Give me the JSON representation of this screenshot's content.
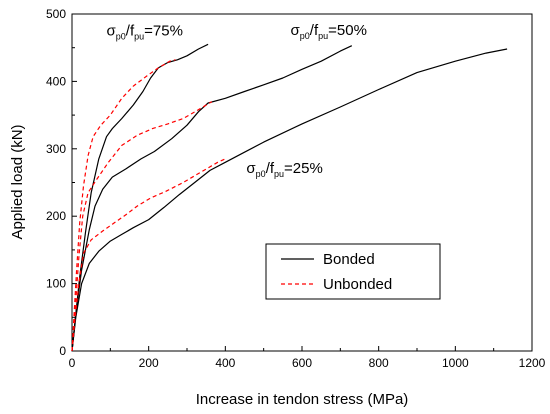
{
  "chart_data": {
    "type": "line",
    "xlabel": "Increase in tendon stress (MPa)",
    "ylabel": "Applied load (kN)",
    "xlim": [
      0,
      1200
    ],
    "ylim": [
      0,
      500
    ],
    "xticks": [
      0,
      200,
      400,
      600,
      800,
      1000,
      1200
    ],
    "yticks": [
      0,
      100,
      200,
      300,
      400,
      500
    ],
    "grid": false,
    "legend": {
      "position": "lower-right",
      "entries": [
        {
          "label": "Bonded",
          "style": "solid",
          "color": "#000000"
        },
        {
          "label": "Unbonded",
          "style": "dashed",
          "color": "#ff0000"
        }
      ]
    },
    "annotations": [
      {
        "sym": "σ",
        "sub1": "p0",
        "mid": "/f",
        "sub2": "pu",
        "tail": "=75%",
        "x": 90,
        "y": 468
      },
      {
        "sym": "σ",
        "sub1": "p0",
        "mid": "/f",
        "sub2": "pu",
        "tail": "=50%",
        "x": 570,
        "y": 469
      },
      {
        "sym": "σ",
        "sub1": "p0",
        "mid": "/f",
        "sub2": "pu",
        "tail": "=25%",
        "x": 455,
        "y": 264
      }
    ],
    "series": [
      {
        "name": "Bonded",
        "ratio": "75%",
        "style": "solid",
        "color": "#000000",
        "points": [
          [
            0,
            0
          ],
          [
            8,
            45
          ],
          [
            20,
            110
          ],
          [
            35,
            175
          ],
          [
            50,
            235
          ],
          [
            70,
            285
          ],
          [
            90,
            318
          ],
          [
            105,
            330
          ],
          [
            130,
            345
          ],
          [
            160,
            365
          ],
          [
            185,
            385
          ],
          [
            205,
            405
          ],
          [
            225,
            420
          ],
          [
            250,
            428
          ],
          [
            275,
            432
          ],
          [
            300,
            438
          ],
          [
            330,
            448
          ],
          [
            355,
            455
          ]
        ]
      },
      {
        "name": "Bonded",
        "ratio": "50%",
        "style": "solid",
        "color": "#000000",
        "points": [
          [
            0,
            0
          ],
          [
            10,
            55
          ],
          [
            25,
            120
          ],
          [
            45,
            180
          ],
          [
            60,
            215
          ],
          [
            80,
            240
          ],
          [
            105,
            258
          ],
          [
            140,
            270
          ],
          [
            180,
            285
          ],
          [
            215,
            296
          ],
          [
            260,
            315
          ],
          [
            300,
            335
          ],
          [
            330,
            355
          ],
          [
            355,
            368
          ],
          [
            400,
            375
          ],
          [
            450,
            385
          ],
          [
            500,
            395
          ],
          [
            550,
            405
          ],
          [
            600,
            418
          ],
          [
            650,
            430
          ],
          [
            700,
            445
          ],
          [
            730,
            453
          ]
        ]
      },
      {
        "name": "Bonded",
        "ratio": "25%",
        "style": "solid",
        "color": "#000000",
        "points": [
          [
            0,
            0
          ],
          [
            10,
            50
          ],
          [
            25,
            100
          ],
          [
            45,
            130
          ],
          [
            70,
            148
          ],
          [
            100,
            163
          ],
          [
            130,
            173
          ],
          [
            160,
            183
          ],
          [
            200,
            195
          ],
          [
            240,
            213
          ],
          [
            280,
            232
          ],
          [
            320,
            250
          ],
          [
            360,
            268
          ],
          [
            400,
            280
          ],
          [
            450,
            295
          ],
          [
            500,
            310
          ],
          [
            600,
            337
          ],
          [
            700,
            362
          ],
          [
            800,
            388
          ],
          [
            900,
            413
          ],
          [
            1000,
            430
          ],
          [
            1080,
            442
          ],
          [
            1135,
            448
          ]
        ]
      },
      {
        "name": "Unbonded",
        "ratio": "75%",
        "style": "dashed",
        "color": "#ff0000",
        "points": [
          [
            0,
            0
          ],
          [
            5,
            50
          ],
          [
            12,
            120
          ],
          [
            20,
            190
          ],
          [
            30,
            245
          ],
          [
            42,
            290
          ],
          [
            55,
            318
          ],
          [
            75,
            335
          ],
          [
            100,
            350
          ],
          [
            130,
            375
          ],
          [
            160,
            393
          ],
          [
            195,
            408
          ],
          [
            225,
            420
          ],
          [
            255,
            430
          ],
          [
            270,
            432
          ]
        ]
      },
      {
        "name": "Unbonded",
        "ratio": "50%",
        "style": "dashed",
        "color": "#ff0000",
        "points": [
          [
            0,
            0
          ],
          [
            8,
            60
          ],
          [
            18,
            140
          ],
          [
            28,
            200
          ],
          [
            42,
            235
          ],
          [
            65,
            255
          ],
          [
            95,
            280
          ],
          [
            130,
            305
          ],
          [
            170,
            320
          ],
          [
            210,
            330
          ],
          [
            250,
            337
          ],
          [
            290,
            345
          ],
          [
            330,
            358
          ],
          [
            365,
            370
          ]
        ]
      },
      {
        "name": "Unbonded",
        "ratio": "25%",
        "style": "dashed",
        "color": "#ff0000",
        "points": [
          [
            0,
            0
          ],
          [
            8,
            50
          ],
          [
            18,
            100
          ],
          [
            30,
            145
          ],
          [
            50,
            165
          ],
          [
            80,
            178
          ],
          [
            110,
            190
          ],
          [
            140,
            202
          ],
          [
            170,
            215
          ],
          [
            205,
            227
          ],
          [
            245,
            237
          ],
          [
            290,
            250
          ],
          [
            335,
            265
          ],
          [
            380,
            280
          ],
          [
            400,
            285
          ]
        ]
      }
    ]
  }
}
